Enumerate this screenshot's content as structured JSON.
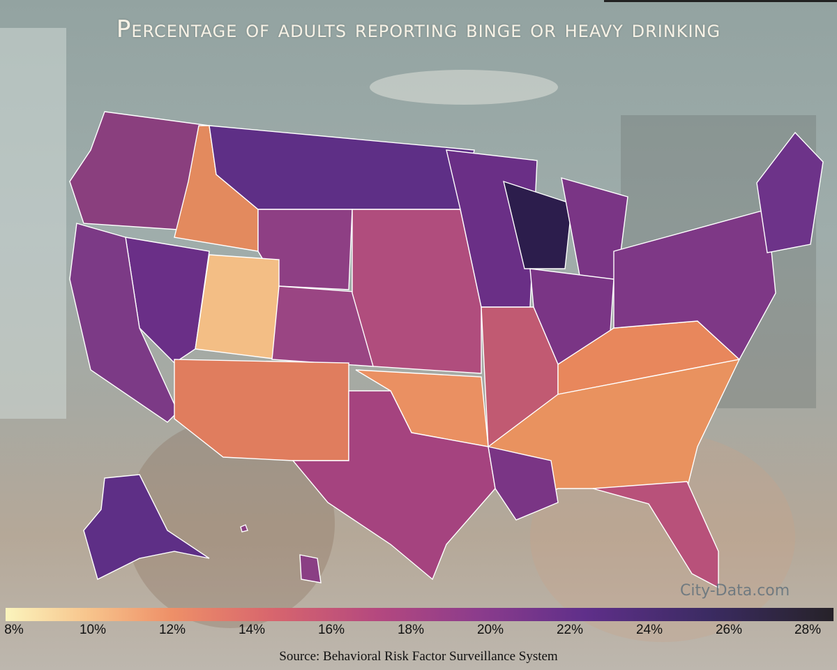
{
  "title": "Percentage of adults reporting binge or heavy drinking",
  "legend": {
    "ticks": [
      "8%",
      "10%",
      "12%",
      "14%",
      "16%",
      "18%",
      "20%",
      "22%",
      "24%",
      "26%",
      "28%"
    ],
    "range": [
      8,
      28
    ],
    "colormap": "magma (light yellow to near-black purple)"
  },
  "source": "Source: Behavioral Risk Factor Surveillance System",
  "watermark": "City-Data.com",
  "colors": {
    "low": "#fbf4bd",
    "mid": "#d8666d",
    "high": "#262228"
  }
}
